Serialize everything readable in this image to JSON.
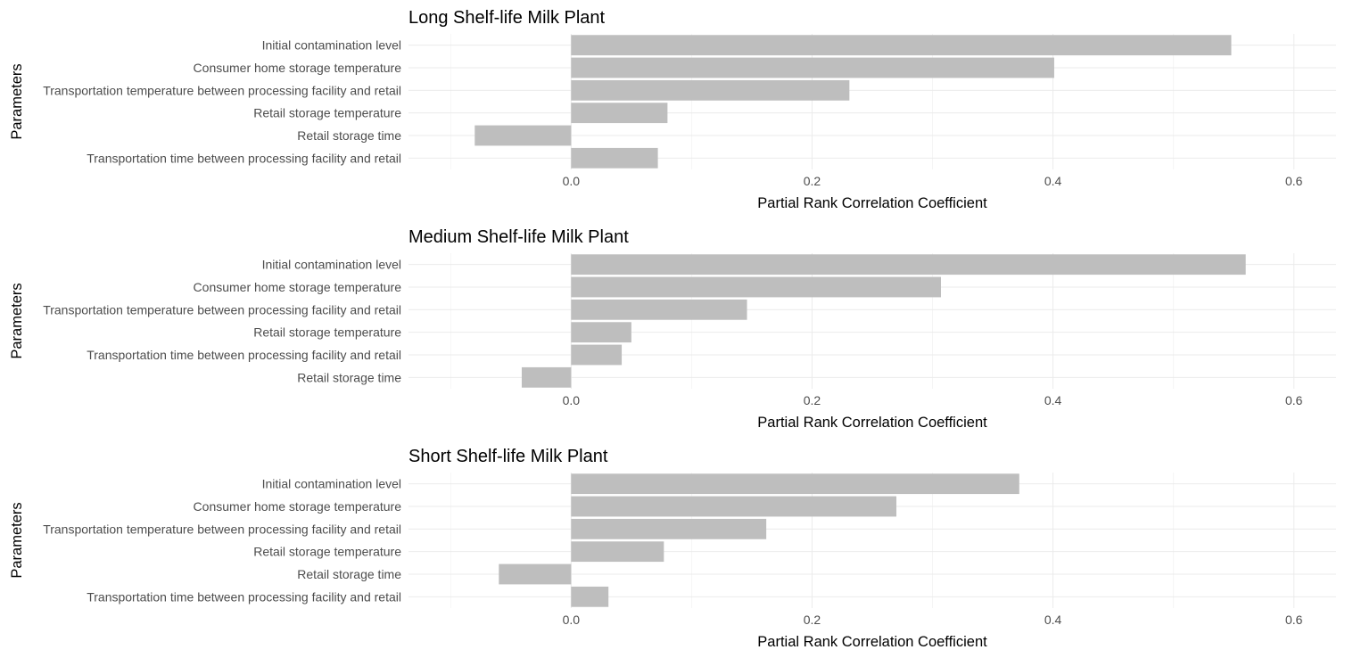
{
  "chart_data": [
    {
      "type": "bar",
      "orientation": "horizontal",
      "title": "Long Shelf-life Milk Plant",
      "xlabel": "Partial Rank Correlation Coefficient",
      "ylabel": "Parameters",
      "xlim": [
        -0.135,
        0.635
      ],
      "xticks": [
        0.0,
        0.2,
        0.4,
        0.6
      ],
      "xtick_labels": [
        "0.0",
        "0.2",
        "0.4",
        "0.6"
      ],
      "categories": [
        "Initial contamination level",
        "Consumer home storage temperature",
        "Transportation temperature between processing facility and retail",
        "Retail storage temperature",
        "Retail storage time",
        "Transportation time between processing facility and retail"
      ],
      "values": [
        0.548,
        0.401,
        0.231,
        0.08,
        -0.08,
        0.072
      ],
      "bar_color": "#bebebe",
      "grid": true
    },
    {
      "type": "bar",
      "orientation": "horizontal",
      "title": "Medium Shelf-life Milk Plant",
      "xlabel": "Partial Rank Correlation Coefficient",
      "ylabel": "Parameters",
      "xlim": [
        -0.135,
        0.635
      ],
      "xticks": [
        0.0,
        0.2,
        0.4,
        0.6
      ],
      "xtick_labels": [
        "0.0",
        "0.2",
        "0.4",
        "0.6"
      ],
      "categories": [
        "Initial contamination level",
        "Consumer home storage temperature",
        "Transportation temperature between processing facility and retail",
        "Retail storage temperature",
        "Transportation time between processing facility and retail",
        "Retail storage time"
      ],
      "values": [
        0.56,
        0.307,
        0.146,
        0.05,
        0.042,
        -0.041
      ],
      "bar_color": "#bebebe",
      "grid": true
    },
    {
      "type": "bar",
      "orientation": "horizontal",
      "title": "Short Shelf-life Milk Plant",
      "xlabel": "Partial Rank Correlation Coefficient",
      "ylabel": "Parameters",
      "xlim": [
        -0.135,
        0.635
      ],
      "xticks": [
        0.0,
        0.2,
        0.4,
        0.6
      ],
      "xtick_labels": [
        "0.0",
        "0.2",
        "0.4",
        "0.6"
      ],
      "categories": [
        "Initial contamination level",
        "Consumer home storage temperature",
        "Transportation temperature between processing facility and retail",
        "Retail storage temperature",
        "Retail storage time",
        "Transportation time between processing facility and retail"
      ],
      "values": [
        0.372,
        0.27,
        0.162,
        0.077,
        -0.06,
        0.031
      ],
      "bar_color": "#bebebe",
      "grid": true
    }
  ]
}
